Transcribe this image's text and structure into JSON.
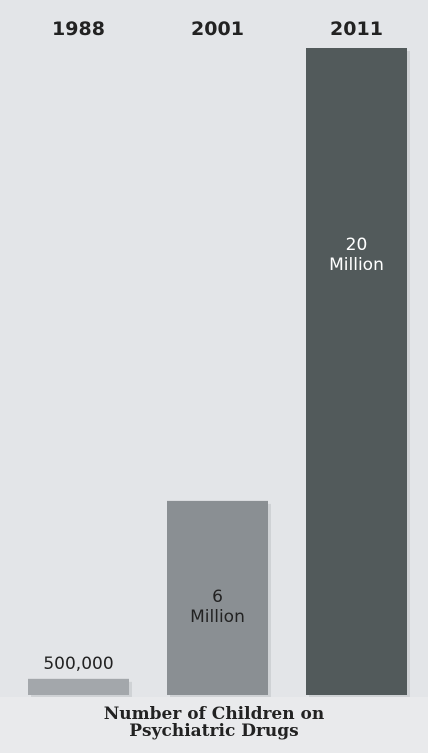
{
  "chart_data": {
    "type": "bar",
    "categories": [
      "1988",
      "2001",
      "2011"
    ],
    "values": [
      500000,
      6000000,
      20000000
    ],
    "value_labels": [
      [
        "500,000"
      ],
      [
        "6",
        "Million"
      ],
      [
        "20",
        "Million"
      ]
    ],
    "value_label_position": [
      "above",
      "inside",
      "inside"
    ],
    "caption_lines": [
      "Number of Children on",
      "Psychiatric Drugs"
    ],
    "category_label_position": "top",
    "colors": {
      "background": "#e3e5e8",
      "panel_shadow": "#cfd2d5",
      "bars": [
        "#a3a7ab",
        "#8a8f93",
        "#525a5b"
      ],
      "value_text_above": "#222222",
      "value_text_inside": [
        "#222222",
        "#222222",
        "#ffffff"
      ],
      "category_text": "#222222"
    },
    "grid": false,
    "legend": "none",
    "ylim": [
      0,
      20000000
    ]
  }
}
